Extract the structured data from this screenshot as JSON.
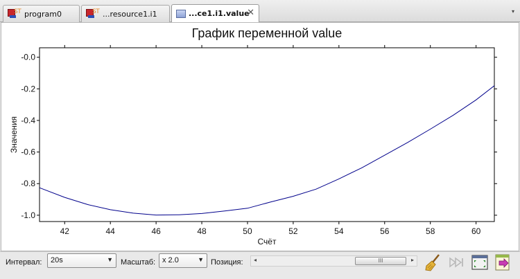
{
  "tabs": [
    {
      "label": "program0",
      "icon": "st-program-icon",
      "active": false
    },
    {
      "label": "...resource1.i1",
      "icon": "st-program-icon",
      "active": false
    },
    {
      "label": "...ce1.i1.value",
      "icon": "chart-icon",
      "active": true
    }
  ],
  "tab_icon_text": "ST",
  "close_glyph": "✕",
  "tab_menu_glyph": "▾",
  "chart_data": {
    "type": "line",
    "title": "График переменной value",
    "xlabel": "Счёт",
    "ylabel": "Значения",
    "xlim": [
      40.9,
      60.8
    ],
    "ylim": [
      -1.04,
      0.06
    ],
    "xticks": [
      42,
      44,
      46,
      48,
      50,
      52,
      54,
      56,
      58,
      60
    ],
    "yticks": [
      -1.0,
      -0.8,
      -0.6,
      -0.4,
      -0.2,
      -0.0
    ],
    "ytick_labels": [
      "-1.0",
      "-0.8",
      "-0.6",
      "-0.4",
      "-0.2",
      "-0.0"
    ],
    "grid": false,
    "series": [
      {
        "color": "#00008b",
        "x": [
          40.9,
          42,
          43,
          44,
          45,
          46,
          47,
          48,
          49,
          50,
          51,
          52,
          53,
          54,
          55,
          56,
          57,
          58,
          59,
          60,
          60.8
        ],
        "y": [
          -0.826,
          -0.887,
          -0.932,
          -0.965,
          -0.987,
          -0.999,
          -0.997,
          -0.989,
          -0.973,
          -0.956,
          -0.917,
          -0.88,
          -0.835,
          -0.77,
          -0.7,
          -0.62,
          -0.54,
          -0.455,
          -0.367,
          -0.27,
          -0.18
        ]
      }
    ]
  },
  "toolbar": {
    "interval_label": "Интервал:",
    "interval_value": "20s",
    "scale_label": "Масштаб:",
    "scale_value": "x 2.0",
    "position_label": "Позиция:",
    "scroll_left": "◂",
    "scroll_right": "▸",
    "thumb_grip": "III",
    "combo_arrow": "▼"
  },
  "icons": {
    "clear": "broom-icon",
    "play_to_end": "skip-to-end-icon",
    "fit": "fit-view-icon",
    "export": "export-icon"
  }
}
